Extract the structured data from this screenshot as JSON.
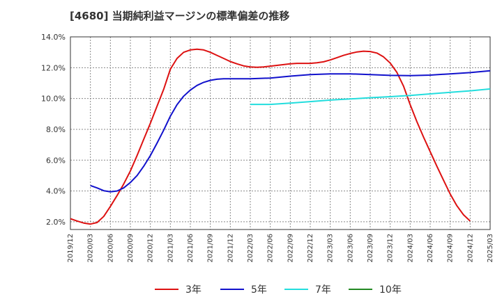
{
  "title": "[4680]  当期純利益マージンの標準偏差の推移",
  "chart_data": {
    "type": "line",
    "x_ticks": [
      "2019/12",
      "2020/03",
      "2020/06",
      "2020/09",
      "2020/12",
      "2021/03",
      "2021/06",
      "2021/09",
      "2021/12",
      "2022/03",
      "2022/06",
      "2022/09",
      "2022/12",
      "2023/03",
      "2023/06",
      "2023/09",
      "2023/12",
      "2024/03",
      "2024/06",
      "2024/09",
      "2024/12",
      "2025/03"
    ],
    "y_ticks": [
      "2.0%",
      "4.0%",
      "6.0%",
      "8.0%",
      "10.0%",
      "12.0%",
      "14.0%"
    ],
    "ylim": [
      1.5,
      14.0
    ],
    "grid": true,
    "legend_position": "bottom",
    "series": [
      {
        "name": "3年",
        "color": "#dd1111",
        "points": [
          [
            "2019/12",
            2.2
          ],
          [
            "2020/01",
            2.05
          ],
          [
            "2020/02",
            1.92
          ],
          [
            "2020/03",
            1.85
          ],
          [
            "2020/04",
            1.95
          ],
          [
            "2020/05",
            2.35
          ],
          [
            "2020/06",
            3.0
          ],
          [
            "2020/07",
            3.7
          ],
          [
            "2020/08",
            4.45
          ],
          [
            "2020/09",
            5.3
          ],
          [
            "2020/10",
            6.3
          ],
          [
            "2020/11",
            7.35
          ],
          [
            "2020/12",
            8.4
          ],
          [
            "2021/01",
            9.5
          ],
          [
            "2021/02",
            10.6
          ],
          [
            "2021/03",
            11.9
          ],
          [
            "2021/04",
            12.6
          ],
          [
            "2021/05",
            13.0
          ],
          [
            "2021/06",
            13.15
          ],
          [
            "2021/07",
            13.2
          ],
          [
            "2021/08",
            13.15
          ],
          [
            "2021/09",
            13.0
          ],
          [
            "2021/10",
            12.8
          ],
          [
            "2021/11",
            12.6
          ],
          [
            "2021/12",
            12.4
          ],
          [
            "2022/01",
            12.25
          ],
          [
            "2022/02",
            12.12
          ],
          [
            "2022/03",
            12.05
          ],
          [
            "2022/04",
            12.03
          ],
          [
            "2022/05",
            12.05
          ],
          [
            "2022/06",
            12.1
          ],
          [
            "2022/07",
            12.15
          ],
          [
            "2022/08",
            12.2
          ],
          [
            "2022/09",
            12.25
          ],
          [
            "2022/10",
            12.28
          ],
          [
            "2022/11",
            12.28
          ],
          [
            "2022/12",
            12.28
          ],
          [
            "2023/01",
            12.32
          ],
          [
            "2023/02",
            12.38
          ],
          [
            "2023/03",
            12.5
          ],
          [
            "2023/04",
            12.65
          ],
          [
            "2023/05",
            12.8
          ],
          [
            "2023/06",
            12.92
          ],
          [
            "2023/07",
            13.02
          ],
          [
            "2023/08",
            13.07
          ],
          [
            "2023/09",
            13.05
          ],
          [
            "2023/10",
            12.95
          ],
          [
            "2023/11",
            12.7
          ],
          [
            "2023/12",
            12.3
          ],
          [
            "2024/01",
            11.7
          ],
          [
            "2024/02",
            10.8
          ],
          [
            "2024/03",
            9.6
          ],
          [
            "2024/04",
            8.5
          ],
          [
            "2024/05",
            7.5
          ],
          [
            "2024/06",
            6.55
          ],
          [
            "2024/07",
            5.6
          ],
          [
            "2024/08",
            4.7
          ],
          [
            "2024/09",
            3.8
          ],
          [
            "2024/10",
            3.05
          ],
          [
            "2024/11",
            2.45
          ],
          [
            "2024/12",
            2.05
          ]
        ]
      },
      {
        "name": "5年",
        "color": "#1111cc",
        "points": [
          [
            "2020/03",
            4.35
          ],
          [
            "2020/04",
            4.2
          ],
          [
            "2020/05",
            4.02
          ],
          [
            "2020/06",
            3.95
          ],
          [
            "2020/07",
            4.0
          ],
          [
            "2020/08",
            4.2
          ],
          [
            "2020/09",
            4.55
          ],
          [
            "2020/10",
            5.0
          ],
          [
            "2020/11",
            5.6
          ],
          [
            "2020/12",
            6.3
          ],
          [
            "2021/01",
            7.1
          ],
          [
            "2021/02",
            7.95
          ],
          [
            "2021/03",
            8.85
          ],
          [
            "2021/04",
            9.6
          ],
          [
            "2021/05",
            10.15
          ],
          [
            "2021/06",
            10.55
          ],
          [
            "2021/07",
            10.85
          ],
          [
            "2021/08",
            11.05
          ],
          [
            "2021/09",
            11.18
          ],
          [
            "2021/10",
            11.25
          ],
          [
            "2021/11",
            11.28
          ],
          [
            "2021/12",
            11.28
          ],
          [
            "2022/03",
            11.28
          ],
          [
            "2022/06",
            11.33
          ],
          [
            "2022/09",
            11.45
          ],
          [
            "2022/12",
            11.55
          ],
          [
            "2023/03",
            11.6
          ],
          [
            "2023/06",
            11.6
          ],
          [
            "2023/09",
            11.55
          ],
          [
            "2023/12",
            11.5
          ],
          [
            "2024/03",
            11.48
          ],
          [
            "2024/06",
            11.52
          ],
          [
            "2024/09",
            11.6
          ],
          [
            "2024/12",
            11.68
          ],
          [
            "2025/03",
            11.8
          ]
        ]
      },
      {
        "name": "7年",
        "color": "#22dddd",
        "points": [
          [
            "2022/03",
            9.62
          ],
          [
            "2022/06",
            9.62
          ],
          [
            "2022/09",
            9.7
          ],
          [
            "2022/12",
            9.8
          ],
          [
            "2023/03",
            9.9
          ],
          [
            "2023/06",
            9.97
          ],
          [
            "2023/09",
            10.05
          ],
          [
            "2023/12",
            10.12
          ],
          [
            "2024/03",
            10.2
          ],
          [
            "2024/06",
            10.3
          ],
          [
            "2024/09",
            10.4
          ],
          [
            "2024/12",
            10.5
          ],
          [
            "2025/03",
            10.62
          ]
        ]
      },
      {
        "name": "10年",
        "color": "#228822",
        "points": []
      }
    ]
  }
}
